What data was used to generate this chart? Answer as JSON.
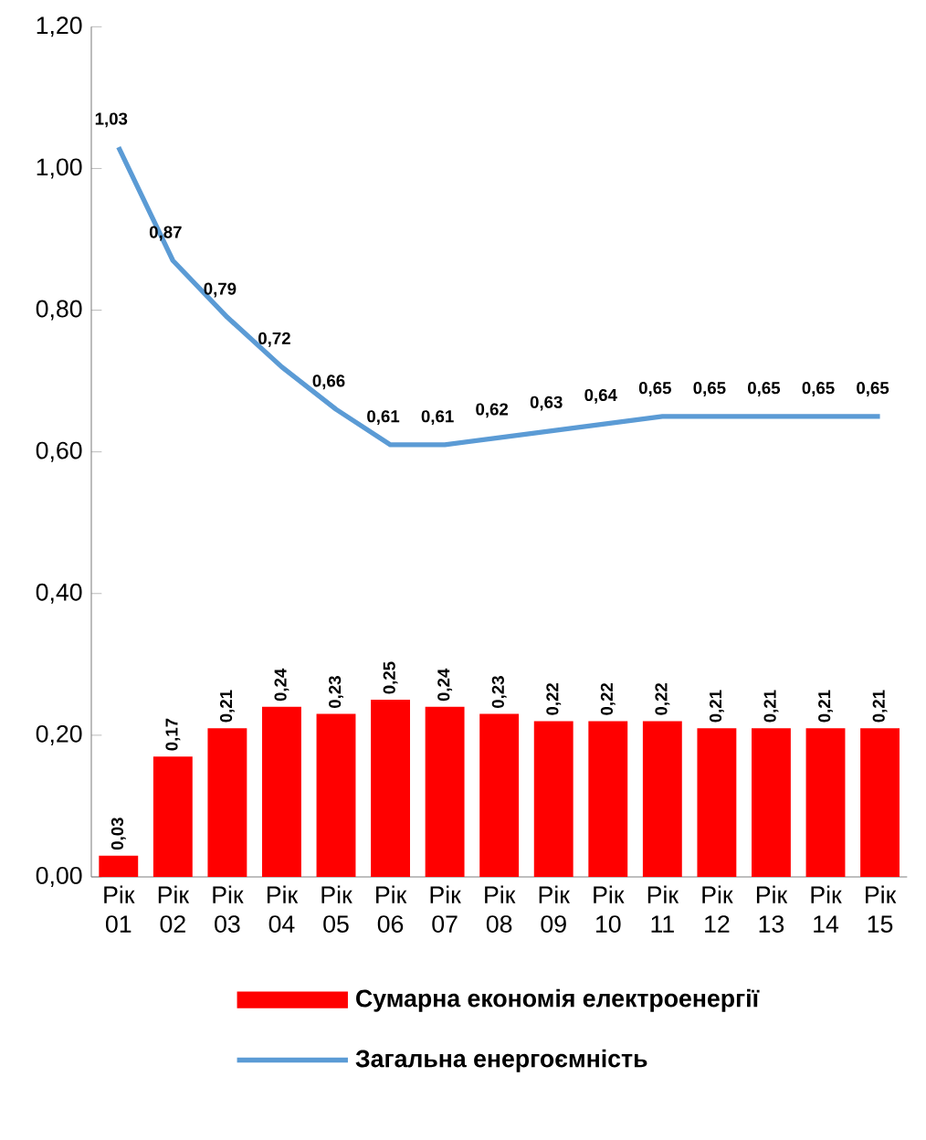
{
  "chart_data": {
    "type": "bar",
    "categories": [
      "Рік 01",
      "Рік 02",
      "Рік 03",
      "Рік 04",
      "Рік 05",
      "Рік 06",
      "Рік 07",
      "Рік 08",
      "Рік 09",
      "Рік 10",
      "Рік 11",
      "Рік 12",
      "Рік 13",
      "Рік 14",
      "Рік 15"
    ],
    "ylim": [
      0,
      1.2
    ],
    "yticks": [
      {
        "value": 0,
        "label": "0,00"
      },
      {
        "value": 0.2,
        "label": "0,20"
      },
      {
        "value": 0.4,
        "label": "0,40"
      },
      {
        "value": 0.6,
        "label": "0,60"
      },
      {
        "value": 0.8,
        "label": "0,80"
      },
      {
        "value": 1.0,
        "label": "1,00"
      },
      {
        "value": 1.2,
        "label": "1,20"
      }
    ],
    "legend": "bottom",
    "grid": false,
    "series": [
      {
        "name": "Сумарна економія електроенергії",
        "color": "#ff0000",
        "values": [
          0.03,
          0.17,
          0.21,
          0.24,
          0.23,
          0.25,
          0.24,
          0.23,
          0.22,
          0.22,
          0.22,
          0.21,
          0.21,
          0.21,
          0.21
        ],
        "value_labels": [
          "0,03",
          "0,17",
          "0,21",
          "0,24",
          "0,23",
          "0,25",
          "0,24",
          "0,23",
          "0,22",
          "0,22",
          "0,22",
          "0,21",
          "0,21",
          "0,21",
          "0,21"
        ]
      },
      {
        "type": "line",
        "name": "Загальна енергоємність",
        "color": "#5b9bd5",
        "marker": "none",
        "line_style": "solid",
        "values": [
          1.03,
          0.87,
          0.79,
          0.72,
          0.66,
          0.61,
          0.61,
          0.62,
          0.63,
          0.64,
          0.65,
          0.65,
          0.65,
          0.65,
          0.65
        ],
        "value_labels": [
          "1,03",
          "0,87",
          "0,79",
          "0,72",
          "0,66",
          "0,61",
          "0,61",
          "0,62",
          "0,63",
          "0,64",
          "0,65",
          "0,65",
          "0,65",
          "0,65",
          "0,65"
        ]
      }
    ]
  }
}
